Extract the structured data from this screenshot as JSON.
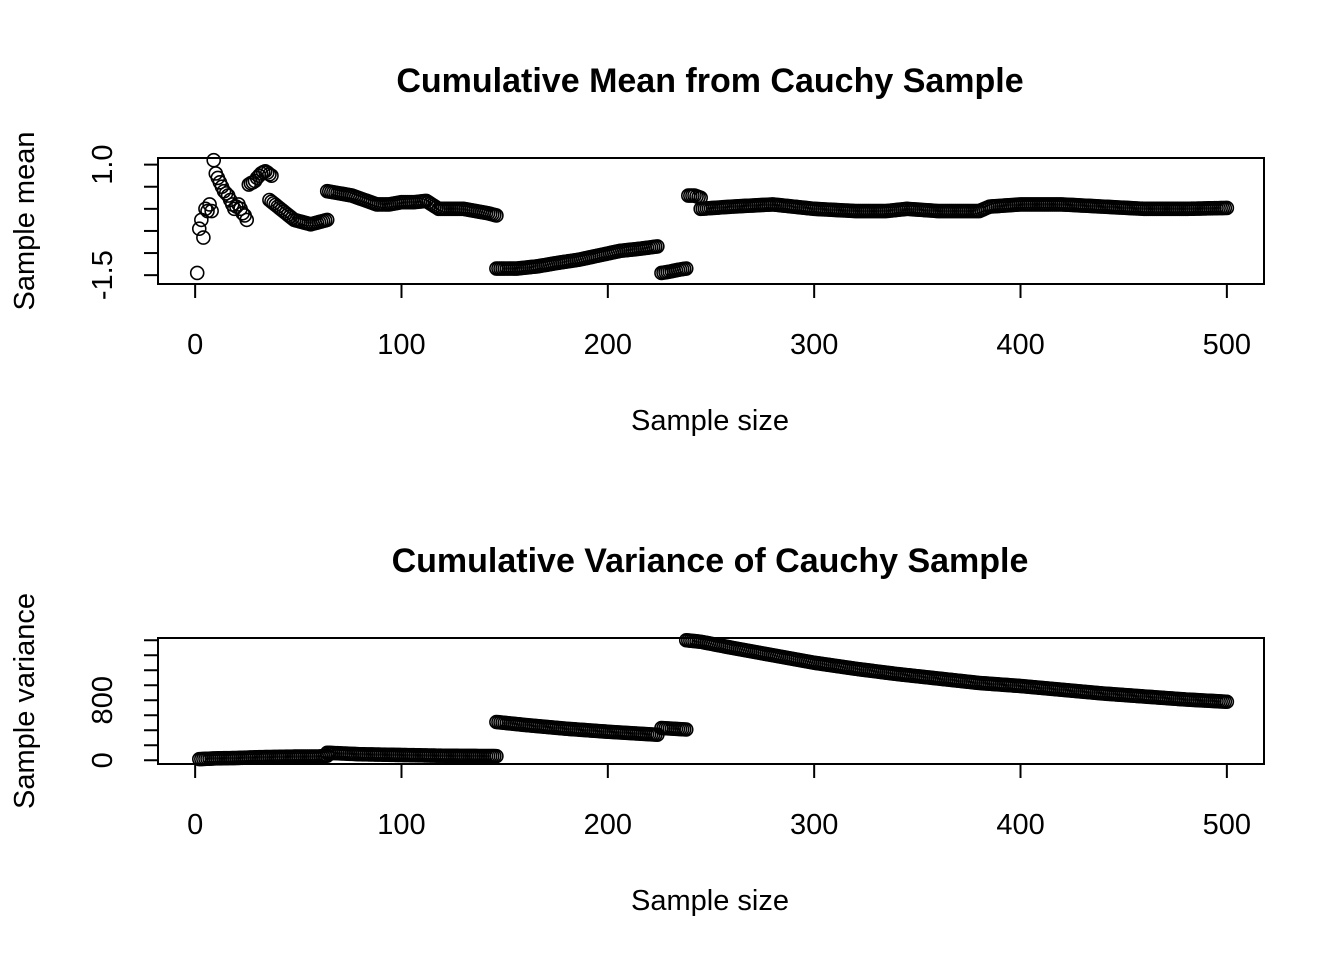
{
  "chart_data": [
    {
      "type": "scatter",
      "title": "Cumulative Mean from Cauchy Sample",
      "xlabel": "Sample size",
      "ylabel": "Sample mean",
      "xlim": [
        -18,
        518
      ],
      "ylim": [
        -1.7,
        1.15
      ],
      "xticks": [
        0,
        100,
        200,
        300,
        400,
        500
      ],
      "xtick_labels": [
        "0",
        "100",
        "200",
        "300",
        "400",
        "500"
      ],
      "yticks": [
        -1.5,
        1.0
      ],
      "ytick_labels": [
        "-1.5",
        "1.0"
      ],
      "y_minor_ticks": [
        -1.5,
        -1.0,
        -0.5,
        0.0,
        0.5,
        1.0
      ],
      "segments": [
        {
          "x": [
            1
          ],
          "y": [
            -1.45
          ]
        },
        {
          "x": [
            2,
            3,
            4,
            5,
            6,
            7,
            8
          ],
          "y": [
            -0.45,
            -0.25,
            -0.65,
            0.0,
            -0.05,
            0.1,
            -0.05
          ]
        },
        {
          "x": [
            9,
            10,
            11,
            12,
            13,
            14,
            15,
            16,
            17,
            18,
            19,
            20,
            21,
            22,
            23,
            24,
            25
          ],
          "y": [
            1.1,
            0.8,
            0.7,
            0.6,
            0.5,
            0.4,
            0.35,
            0.3,
            0.2,
            0.1,
            0.0,
            0.05,
            0.1,
            0.0,
            -0.1,
            -0.15,
            -0.25
          ]
        },
        {
          "x": [
            26,
            27,
            28,
            29,
            30,
            31,
            32,
            33,
            34,
            35,
            36,
            37
          ],
          "y": [
            0.55,
            0.58,
            0.6,
            0.63,
            0.7,
            0.75,
            0.8,
            0.83,
            0.85,
            0.82,
            0.78,
            0.75
          ]
        },
        {
          "x": [
            36,
            40,
            44,
            48,
            52,
            56,
            60,
            64
          ],
          "y": [
            0.2,
            0.05,
            -0.1,
            -0.25,
            -0.3,
            -0.35,
            -0.3,
            -0.25
          ]
        },
        {
          "x": [
            64,
            70,
            76,
            82,
            88,
            94,
            100,
            106,
            112,
            118,
            124,
            130,
            136,
            142,
            146
          ],
          "y": [
            0.4,
            0.35,
            0.3,
            0.2,
            0.1,
            0.1,
            0.15,
            0.15,
            0.18,
            0.0,
            0.0,
            0.0,
            -0.05,
            -0.1,
            -0.15
          ]
        },
        {
          "x": [
            146,
            156,
            166,
            176,
            186,
            196,
            206,
            216,
            224
          ],
          "y": [
            -1.35,
            -1.35,
            -1.3,
            -1.22,
            -1.15,
            -1.05,
            -0.95,
            -0.9,
            -0.85
          ]
        },
        {
          "x": [
            226,
            230,
            234,
            238
          ],
          "y": [
            -1.45,
            -1.42,
            -1.38,
            -1.35
          ]
        },
        {
          "x": [
            239,
            242,
            245
          ],
          "y": [
            0.3,
            0.3,
            0.25
          ]
        },
        {
          "x": [
            245,
            260,
            280,
            300,
            320,
            335,
            345,
            360,
            380,
            385,
            400,
            420,
            440,
            460,
            480,
            500
          ],
          "y": [
            0.0,
            0.05,
            0.1,
            0.0,
            -0.05,
            -0.05,
            0.0,
            -0.05,
            -0.05,
            0.05,
            0.1,
            0.1,
            0.05,
            0.0,
            0.0,
            0.02
          ]
        }
      ]
    },
    {
      "type": "scatter",
      "title": "Cumulative Variance of Cauchy Sample",
      "xlabel": "Sample size",
      "ylabel": "Sample variance",
      "xlim": [
        -18,
        518
      ],
      "ylim": [
        -50,
        1630
      ],
      "xticks": [
        0,
        100,
        200,
        300,
        400,
        500
      ],
      "xtick_labels": [
        "0",
        "100",
        "200",
        "300",
        "400",
        "500"
      ],
      "yticks": [
        0,
        800
      ],
      "ytick_labels": [
        "0",
        "800"
      ],
      "y_minor_ticks": [
        0,
        200,
        400,
        600,
        800,
        1000,
        1200,
        1400,
        1600
      ],
      "segments": [
        {
          "x": [
            2,
            10,
            20,
            30,
            40,
            50,
            60,
            64
          ],
          "y": [
            15,
            25,
            30,
            40,
            45,
            50,
            50,
            60
          ]
        },
        {
          "x": [
            64,
            80,
            100,
            120,
            146
          ],
          "y": [
            100,
            80,
            70,
            60,
            55
          ]
        },
        {
          "x": [
            146,
            160,
            180,
            200,
            224
          ],
          "y": [
            510,
            470,
            420,
            380,
            340
          ]
        },
        {
          "x": [
            226,
            238
          ],
          "y": [
            430,
            410
          ]
        },
        {
          "x": [
            238,
            245,
            260,
            280,
            300,
            320,
            340,
            360,
            380,
            400,
            420,
            440,
            460,
            480,
            500
          ],
          "y": [
            1600,
            1580,
            1500,
            1400,
            1300,
            1220,
            1150,
            1090,
            1030,
            990,
            940,
            890,
            850,
            810,
            780
          ]
        }
      ]
    }
  ]
}
